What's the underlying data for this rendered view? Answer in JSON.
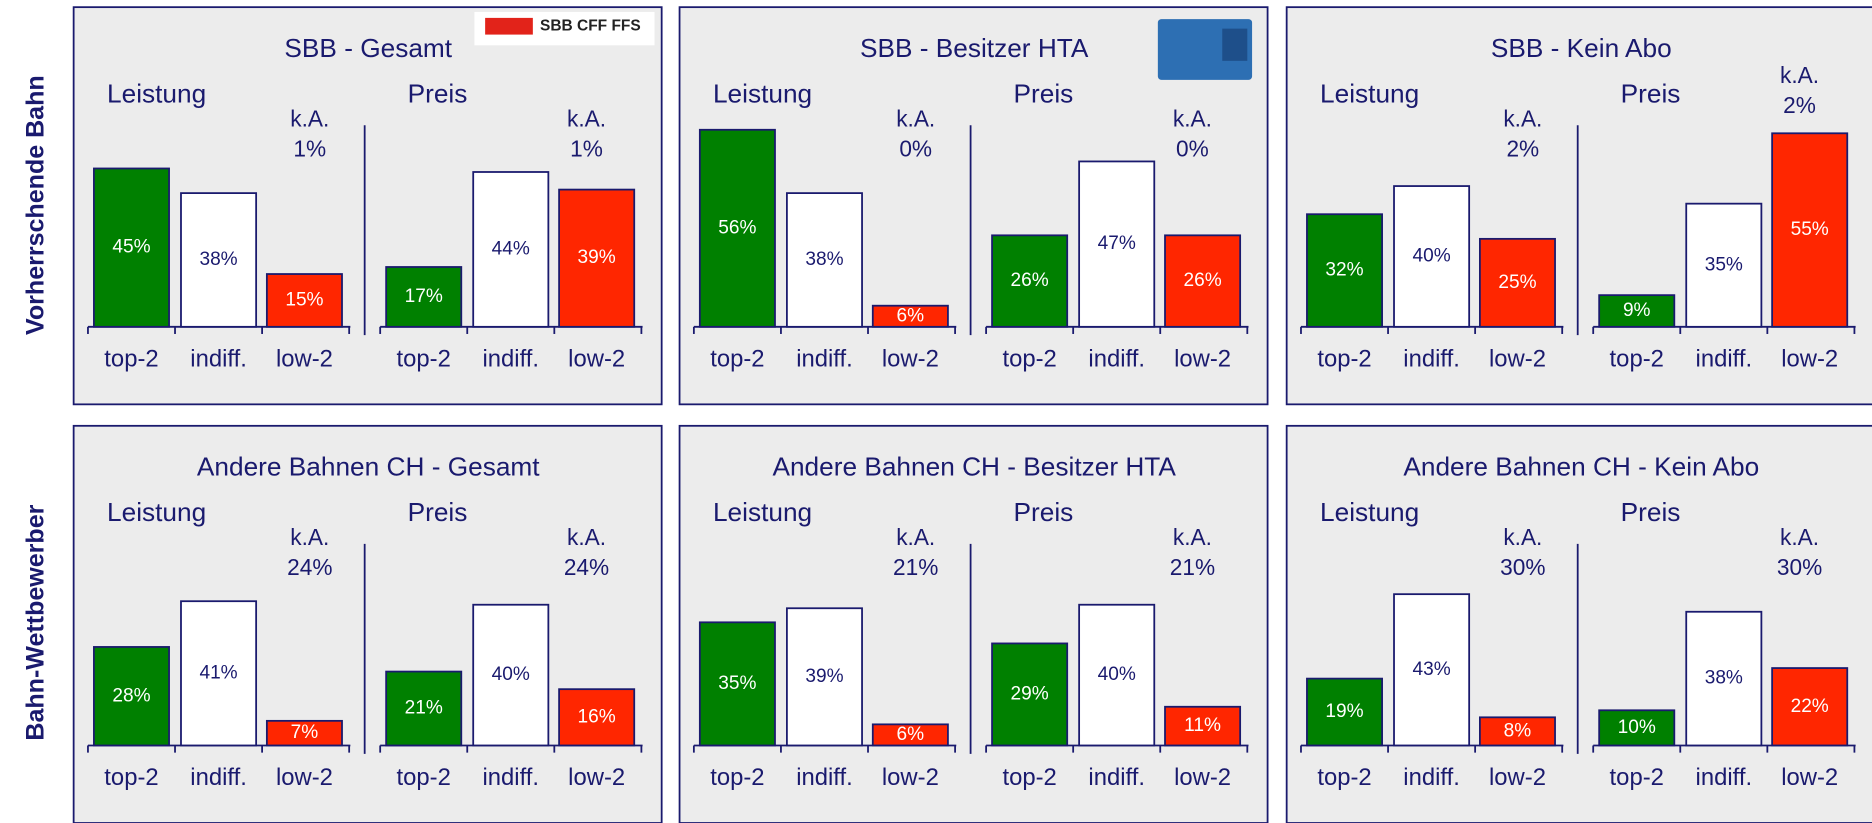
{
  "row_labels": [
    "Vorherrschende Bahn",
    "Bahn-Wettbewerber"
  ],
  "logo_text": "SBB CFF FFS",
  "chart_data": [
    {
      "type": "bar",
      "title": "SBB - Gesamt",
      "colors": [
        "#008000",
        "#ffffff",
        "#ff2600"
      ],
      "groups": [
        {
          "name": "Leistung",
          "categories": [
            "top-2",
            "indiff.",
            "low-2"
          ],
          "values": [
            45,
            38,
            15
          ],
          "value_labels": [
            "45%",
            "38%",
            "15%"
          ],
          "na_name": "k.A.",
          "na_value": 1,
          "na_value_label": "1%"
        },
        {
          "name": "Preis",
          "categories": [
            "top-2",
            "indiff.",
            "low-2"
          ],
          "values": [
            17,
            44,
            39
          ],
          "value_labels": [
            "17%",
            "44%",
            "39%"
          ],
          "na_name": "k.A.",
          "na_value": 1,
          "na_value_label": "1%"
        }
      ]
    },
    {
      "type": "bar",
      "title": "SBB - Besitzer HTA",
      "colors": [
        "#008000",
        "#ffffff",
        "#ff2600"
      ],
      "groups": [
        {
          "name": "Leistung",
          "categories": [
            "top-2",
            "indiff.",
            "low-2"
          ],
          "values": [
            56,
            38,
            6
          ],
          "value_labels": [
            "56%",
            "38%",
            "6%"
          ],
          "na_name": "k.A.",
          "na_value": 0,
          "na_value_label": "0%"
        },
        {
          "name": "Preis",
          "categories": [
            "top-2",
            "indiff.",
            "low-2"
          ],
          "values": [
            26,
            47,
            26
          ],
          "value_labels": [
            "26%",
            "47%",
            "26%"
          ],
          "na_name": "k.A.",
          "na_value": 0,
          "na_value_label": "0%"
        }
      ]
    },
    {
      "type": "bar",
      "title": "SBB - Kein Abo",
      "colors": [
        "#008000",
        "#ffffff",
        "#ff2600"
      ],
      "groups": [
        {
          "name": "Leistung",
          "categories": [
            "top-2",
            "indiff.",
            "low-2"
          ],
          "values": [
            32,
            40,
            25
          ],
          "value_labels": [
            "32%",
            "40%",
            "25%"
          ],
          "na_name": "k.A.",
          "na_value": 2,
          "na_value_label": "2%"
        },
        {
          "name": "Preis",
          "categories": [
            "top-2",
            "indiff.",
            "low-2"
          ],
          "values": [
            9,
            35,
            55
          ],
          "value_labels": [
            "9%",
            "35%",
            "55%"
          ],
          "na_name": "k.A.",
          "na_value": 2,
          "na_value_label": "2%"
        }
      ]
    },
    {
      "type": "bar",
      "title": "Andere Bahnen CH - Gesamt",
      "colors": [
        "#008000",
        "#ffffff",
        "#ff2600"
      ],
      "groups": [
        {
          "name": "Leistung",
          "categories": [
            "top-2",
            "indiff.",
            "low-2"
          ],
          "values": [
            28,
            41,
            7
          ],
          "value_labels": [
            "28%",
            "41%",
            "7%"
          ],
          "na_name": "k.A.",
          "na_value": 24,
          "na_value_label": "24%"
        },
        {
          "name": "Preis",
          "categories": [
            "top-2",
            "indiff.",
            "low-2"
          ],
          "values": [
            21,
            40,
            16
          ],
          "value_labels": [
            "21%",
            "40%",
            "16%"
          ],
          "na_name": "k.A.",
          "na_value": 24,
          "na_value_label": "24%"
        }
      ]
    },
    {
      "type": "bar",
      "title": "Andere Bahnen CH - Besitzer HTA",
      "colors": [
        "#008000",
        "#ffffff",
        "#ff2600"
      ],
      "groups": [
        {
          "name": "Leistung",
          "categories": [
            "top-2",
            "indiff.",
            "low-2"
          ],
          "values": [
            35,
            39,
            6
          ],
          "value_labels": [
            "35%",
            "39%",
            "6%"
          ],
          "na_name": "k.A.",
          "na_value": 21,
          "na_value_label": "21%"
        },
        {
          "name": "Preis",
          "categories": [
            "top-2",
            "indiff.",
            "low-2"
          ],
          "values": [
            29,
            40,
            11
          ],
          "value_labels": [
            "29%",
            "40%",
            "11%"
          ],
          "na_name": "k.A.",
          "na_value": 21,
          "na_value_label": "21%"
        }
      ]
    },
    {
      "type": "bar",
      "title": "Andere Bahnen CH - Kein Abo",
      "colors": [
        "#008000",
        "#ffffff",
        "#ff2600"
      ],
      "groups": [
        {
          "name": "Leistung",
          "categories": [
            "top-2",
            "indiff.",
            "low-2"
          ],
          "values": [
            19,
            43,
            8
          ],
          "value_labels": [
            "19%",
            "43%",
            "8%"
          ],
          "na_name": "k.A.",
          "na_value": 30,
          "na_value_label": "30%"
        },
        {
          "name": "Preis",
          "categories": [
            "top-2",
            "indiff.",
            "low-2"
          ],
          "values": [
            10,
            38,
            22
          ],
          "value_labels": [
            "10%",
            "38%",
            "22%"
          ],
          "na_name": "k.A.",
          "na_value": 30,
          "na_value_label": "30%"
        }
      ]
    }
  ]
}
